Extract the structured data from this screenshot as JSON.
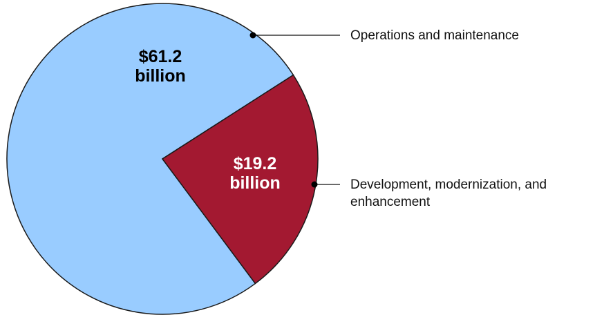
{
  "chart_data": {
    "type": "pie",
    "unit": "billion dollars",
    "slices": [
      {
        "name": "Operations and maintenance",
        "value": 61.2,
        "color": "#99ccff",
        "label_lines": [
          "$61.2",
          "billion"
        ],
        "label_color": "#000000",
        "legend_lines": [
          "Operations and maintenance"
        ]
      },
      {
        "name": "Development, modernization, and enhancement",
        "value": 19.2,
        "color": "#a31931",
        "label_lines": [
          "$19.2",
          "billion"
        ],
        "label_color": "#ffffff",
        "legend_lines": [
          "Development, modernization, and",
          "enhancement"
        ]
      }
    ]
  }
}
